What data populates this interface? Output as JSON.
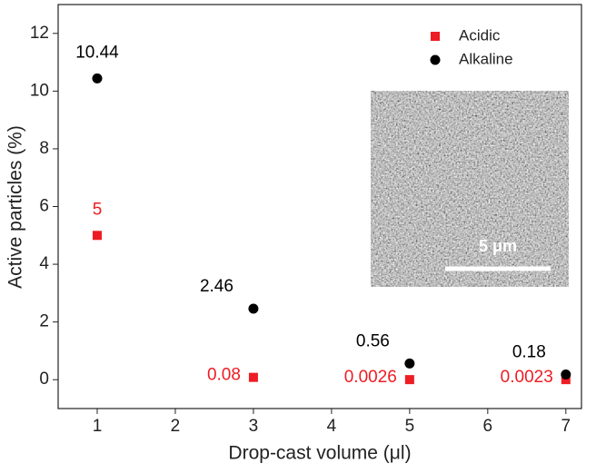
{
  "chart_data": {
    "type": "scatter",
    "xlabel": "Drop-cast volume (μl)",
    "ylabel": "Active particles (%)",
    "xlim": [
      0.5,
      7.2
    ],
    "xticks": [
      1,
      2,
      3,
      4,
      5,
      6,
      7
    ],
    "ylim": [
      -1,
      13
    ],
    "yticks": [
      0,
      2,
      4,
      6,
      8,
      10,
      12
    ],
    "legend": "upper right",
    "series": [
      {
        "name": "Acidic",
        "color": "#ee1c24",
        "marker": "square",
        "x": [
          1,
          3,
          5,
          7
        ],
        "values": [
          5,
          0.08,
          0.0026,
          0.0023
        ]
      },
      {
        "name": "Alkaline",
        "color": "#000000",
        "marker": "circle",
        "x": [
          1,
          3,
          5,
          7
        ],
        "values": [
          10.44,
          2.46,
          0.56,
          0.18
        ]
      }
    ],
    "inset_scale_bar": "5 μm"
  }
}
